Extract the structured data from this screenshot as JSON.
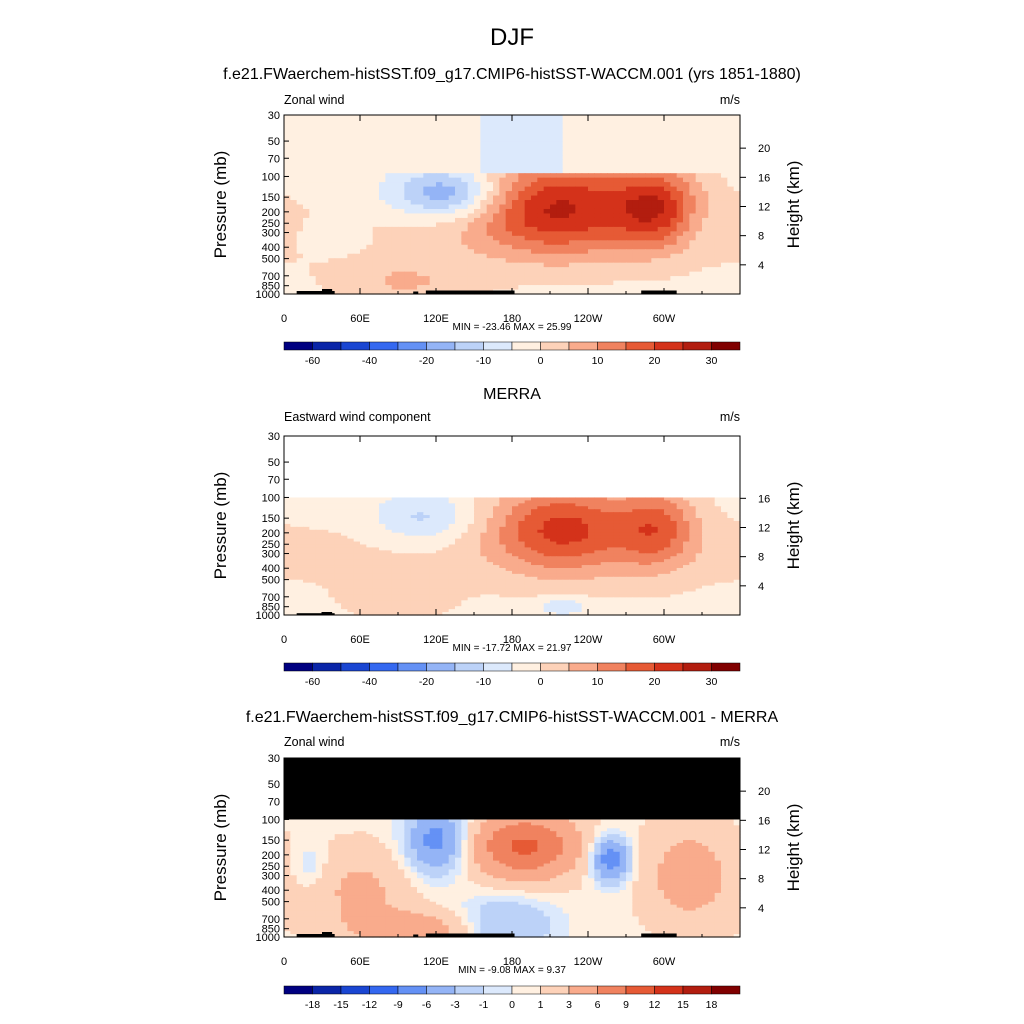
{
  "figure": {
    "title": "DJF",
    "colors": {
      "absolute_scale": [
        "#000080",
        "#0a25a8",
        "#1a46d2",
        "#3468f0",
        "#6491f5",
        "#94b4f6",
        "#bcd2f8",
        "#dce9fc",
        "#fff0e1",
        "#fdd2b9",
        "#f9ab8c",
        "#f0825f",
        "#e65a35",
        "#d4321a",
        "#b21d0f",
        "#800000"
      ],
      "diff_scale": [
        "#000080",
        "#0a25a8",
        "#1a46d2",
        "#3468f0",
        "#6491f5",
        "#94b4f6",
        "#bcd2f8",
        "#dce9fc",
        "#fff0e1",
        "#fdd2b9",
        "#f9ab8c",
        "#f0825f",
        "#e65a35",
        "#d4321a",
        "#b21d0f",
        "#800000"
      ],
      "topography": "#000000",
      "masked": "#000000"
    }
  },
  "chart_data": [
    {
      "type": "heatmap",
      "title": "f.e21.FWaerchem-histSST.f09_g17.CMIP6-histSST-WACCM.001 (yrs 1851-1880)",
      "left_label": "Zonal wind",
      "right_label": "m/s",
      "ylabel": "Pressure (mb)",
      "ylabel_right": "Height (km)",
      "y_ticks": [
        "30",
        "50",
        "70",
        "100",
        "150",
        "200",
        "250",
        "300",
        "400",
        "500",
        "700",
        "850",
        "1000"
      ],
      "y_ticks_right": [
        "20",
        "16",
        "12",
        "8",
        "4"
      ],
      "x_ticks": [
        "0",
        "60E",
        "120E",
        "180",
        "120W",
        "60W"
      ],
      "top_pressure": 30,
      "stats": "MIN = -23.46  MAX =  25.99",
      "colorbar_labels": [
        "-60",
        "-40",
        "-20",
        "-10",
        "0",
        "10",
        "20",
        "30"
      ],
      "features": [
        {
          "lon": 130,
          "p": 140,
          "value": -20,
          "dlon": 32,
          "dp": 0.35
        },
        {
          "lon": 215,
          "p": 180,
          "value": 26,
          "dlon": 48,
          "dp": 0.65
        },
        {
          "lon": 295,
          "p": 180,
          "value": 20,
          "dlon": 24,
          "dp": 0.55
        },
        {
          "lon": 95,
          "p": 800,
          "value": 7,
          "dlon": 38,
          "dp": 0.3
        },
        {
          "lon": 40,
          "p": 320,
          "value": -4,
          "dlon": 18,
          "dp": 0.25
        },
        {
          "lon": 325,
          "p": 250,
          "value": -3,
          "dlon": 12,
          "dp": 0.35
        }
      ]
    },
    {
      "type": "heatmap",
      "title": "MERRA",
      "left_label": "Eastward wind component",
      "right_label": "m/s",
      "ylabel": "Pressure (mb)",
      "ylabel_right": "Height (km)",
      "y_ticks": [
        "30",
        "50",
        "70",
        "100",
        "150",
        "200",
        "250",
        "300",
        "400",
        "500",
        "700",
        "850",
        "1000"
      ],
      "y_ticks_right": [
        "16",
        "12",
        "8",
        "4"
      ],
      "x_ticks": [
        "0",
        "60E",
        "120E",
        "180",
        "120W",
        "60W"
      ],
      "top_pressure": 100,
      "stats": "MIN = -17.72  MAX =  21.97",
      "colorbar_labels": [
        "-60",
        "-40",
        "-20",
        "-10",
        "0",
        "10",
        "20",
        "30"
      ],
      "features": [
        {
          "lon": 110,
          "p": 150,
          "value": -10,
          "dlon": 28,
          "dp": 0.35
        },
        {
          "lon": 220,
          "p": 180,
          "value": 22,
          "dlon": 40,
          "dp": 0.6
        },
        {
          "lon": 295,
          "p": 180,
          "value": 16,
          "dlon": 22,
          "dp": 0.55
        },
        {
          "lon": 90,
          "p": 750,
          "value": 5,
          "dlon": 30,
          "dp": 0.3
        },
        {
          "lon": 220,
          "p": 850,
          "value": -8,
          "dlon": 14,
          "dp": 0.12
        }
      ]
    },
    {
      "type": "heatmap",
      "title": "f.e21.FWaerchem-histSST.f09_g17.CMIP6-histSST-WACCM.001 - MERRA",
      "left_label": "Zonal wind",
      "right_label": "m/s",
      "ylabel": "Pressure (mb)",
      "ylabel_right": "Height (km)",
      "y_ticks": [
        "30",
        "50",
        "70",
        "100",
        "150",
        "200",
        "250",
        "300",
        "400",
        "500",
        "700",
        "850",
        "1000"
      ],
      "y_ticks_right": [
        "20",
        "16",
        "12",
        "8",
        "4"
      ],
      "x_ticks": [
        "0",
        "60E",
        "120E",
        "180",
        "120W",
        "60W"
      ],
      "top_pressure": 100,
      "masked_above": 100,
      "stats": "MIN =  -9.08  MAX =  9.37",
      "colorbar_labels": [
        "-18",
        "-15",
        "-12",
        "-9",
        "-6",
        "-3",
        "-1",
        "0",
        "1",
        "3",
        "6",
        "9",
        "12",
        "15",
        "18"
      ],
      "features": [
        {
          "lon": 120,
          "p": 150,
          "value": -8,
          "dlon": 16,
          "dp": 0.45
        },
        {
          "lon": 190,
          "p": 170,
          "value": 9,
          "dlon": 30,
          "dp": 0.45
        },
        {
          "lon": 258,
          "p": 220,
          "value": -9,
          "dlon": 10,
          "dp": 0.3
        },
        {
          "lon": 320,
          "p": 300,
          "value": 4,
          "dlon": 25,
          "dp": 0.7
        },
        {
          "lon": 60,
          "p": 400,
          "value": 3,
          "dlon": 30,
          "dp": 0.6
        },
        {
          "lon": 105,
          "p": 850,
          "value": 4,
          "dlon": 35,
          "dp": 0.25
        },
        {
          "lon": 20,
          "p": 250,
          "value": -2,
          "dlon": 10,
          "dp": 0.3
        },
        {
          "lon": 175,
          "p": 800,
          "value": -4,
          "dlon": 25,
          "dp": 0.4
        }
      ]
    }
  ]
}
